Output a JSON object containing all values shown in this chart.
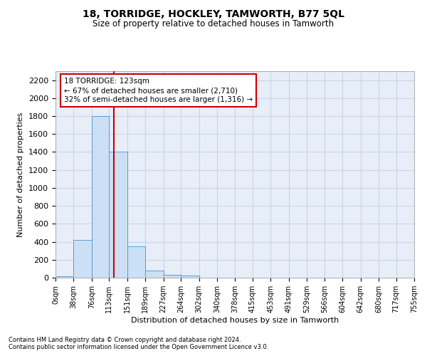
{
  "title": "18, TORRIDGE, HOCKLEY, TAMWORTH, B77 5QL",
  "subtitle": "Size of property relative to detached houses in Tamworth",
  "xlabel": "Distribution of detached houses by size in Tamworth",
  "ylabel": "Number of detached properties",
  "footer_line1": "Contains HM Land Registry data © Crown copyright and database right 2024.",
  "footer_line2": "Contains public sector information licensed under the Open Government Licence v3.0.",
  "bar_edges": [
    0,
    38,
    76,
    113,
    151,
    189,
    227,
    264,
    302,
    340,
    378,
    415,
    453,
    491,
    529,
    566,
    604,
    642,
    680,
    717,
    755
  ],
  "bar_heights": [
    15,
    420,
    1800,
    1400,
    350,
    80,
    35,
    20,
    0,
    0,
    0,
    0,
    0,
    0,
    0,
    0,
    0,
    0,
    0,
    0
  ],
  "bar_color": "#cce0f5",
  "bar_edge_color": "#5b9bd5",
  "grid_color": "#c8d4e8",
  "bg_color": "#e8eef8",
  "property_sqm": 123,
  "vline_color": "#cc0000",
  "annotation_line1": "18 TORRIDGE: 123sqm",
  "annotation_line2": "← 67% of detached houses are smaller (2,710)",
  "annotation_line3": "32% of semi-detached houses are larger (1,316) →",
  "annotation_box_color": "#cc0000",
  "ylim": [
    0,
    2300
  ],
  "yticks": [
    0,
    200,
    400,
    600,
    800,
    1000,
    1200,
    1400,
    1600,
    1800,
    2000,
    2200
  ],
  "tick_labels": [
    "0sqm",
    "38sqm",
    "76sqm",
    "113sqm",
    "151sqm",
    "189sqm",
    "227sqm",
    "264sqm",
    "302sqm",
    "340sqm",
    "378sqm",
    "415sqm",
    "453sqm",
    "491sqm",
    "529sqm",
    "566sqm",
    "604sqm",
    "642sqm",
    "680sqm",
    "717sqm",
    "755sqm"
  ]
}
